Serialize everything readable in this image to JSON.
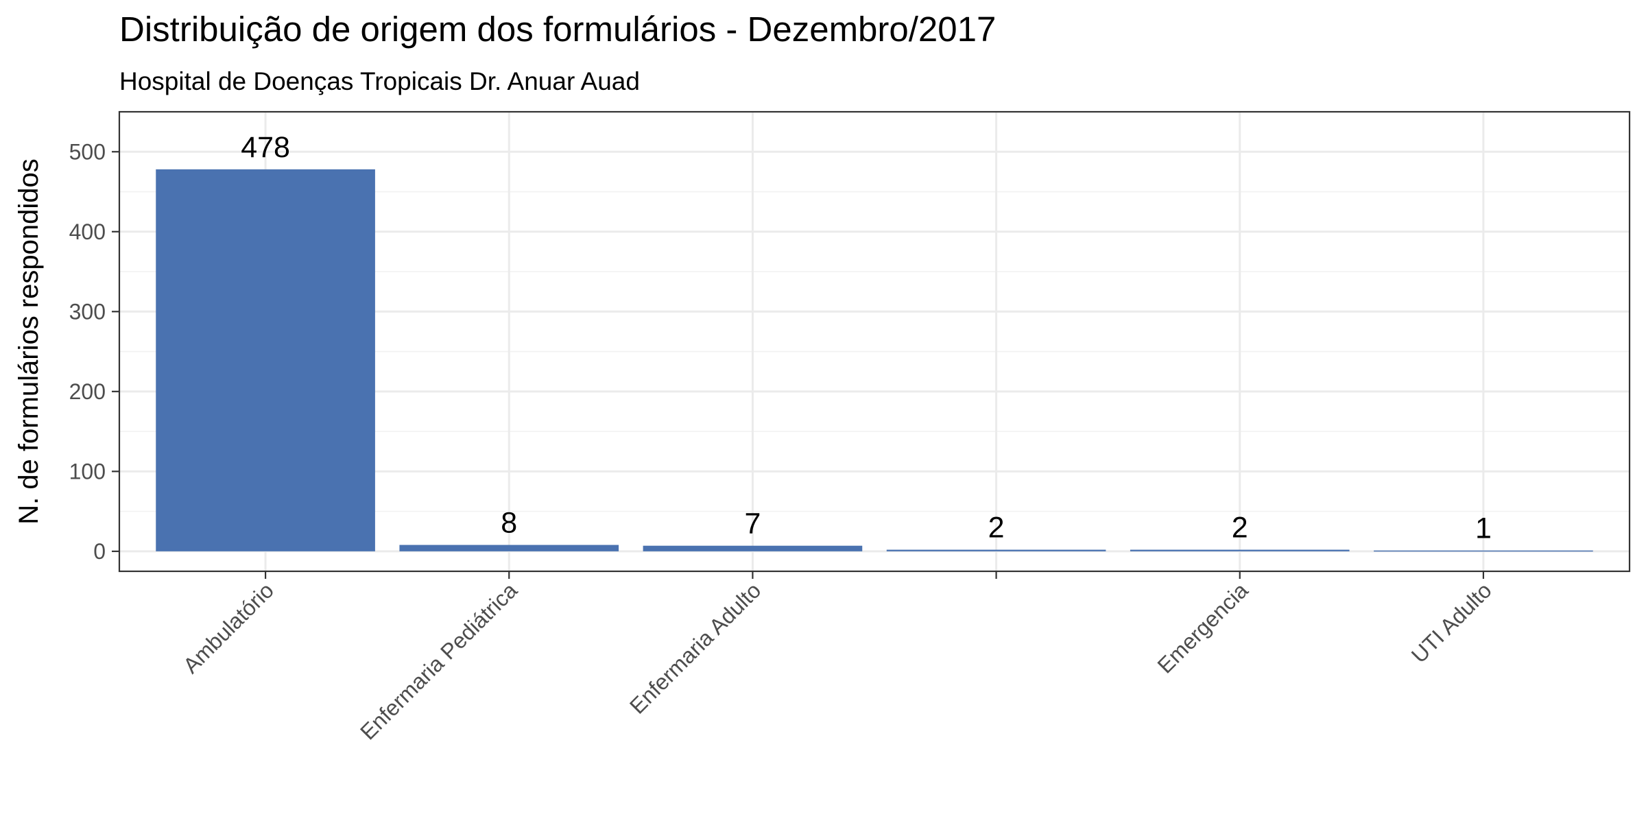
{
  "chart_data": {
    "type": "bar",
    "title": "Distribuição de origem dos formulários - Dezembro/2017",
    "subtitle": "Hospital de Doenças Tropicais Dr. Anuar Auad",
    "xlabel": "",
    "ylabel": "N. de formulários respondidos",
    "categories": [
      "Ambulatório",
      "Enfermaria Pediátrica",
      "Enfermaria Adulto",
      "",
      "Emergencia",
      "UTI Adulto"
    ],
    "values": [
      478,
      8,
      7,
      2,
      2,
      1
    ],
    "data_labels": [
      "478",
      "8",
      "7",
      "2",
      "2",
      "1"
    ],
    "ylim": [
      -25,
      550
    ],
    "y_ticks": [
      0,
      100,
      200,
      300,
      400,
      500
    ],
    "y_tick_labels": [
      "0",
      "100",
      "200",
      "300",
      "400",
      "500"
    ],
    "bar_color": "#4a72b0",
    "grid": true,
    "legend": "none"
  }
}
